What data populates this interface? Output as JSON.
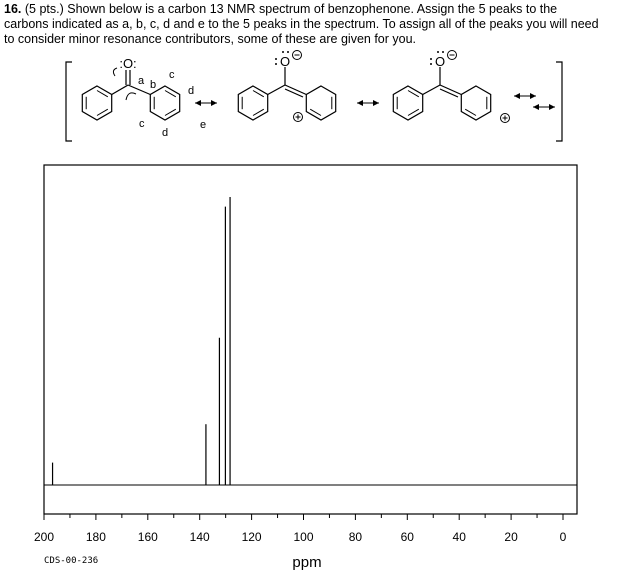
{
  "question": {
    "number": "16.",
    "lines": [
      "(5 pts.) Shown below is a carbon 13 NMR spectrum of benzophenone. Assign the 5 peaks to the",
      "carbons indicated as a, b, c, d and e to the 5 peaks in the spectrum. To assign all of the peaks you will need",
      "to consider minor resonance contributors, some of these are given for you."
    ]
  },
  "structures": {
    "oxygen_1": ":O:",
    "oxygen_2": "O",
    "oxygen_3": "O",
    "labels": [
      "a",
      "b",
      "c",
      "c",
      "d",
      "d",
      "e"
    ]
  },
  "chart_data": {
    "type": "spectrum",
    "x": [
      196.7,
      137.6,
      132.4,
      130.1,
      128.3
    ],
    "values": [
      7,
      19,
      46,
      87,
      90
    ],
    "xlim": [
      200,
      0
    ],
    "xticks": [
      200,
      180,
      160,
      140,
      120,
      100,
      80,
      60,
      40,
      20,
      0
    ],
    "ylim": [
      0,
      100
    ],
    "xlabel": "ppm",
    "code": "CDS-00-236",
    "color": "#000000"
  }
}
